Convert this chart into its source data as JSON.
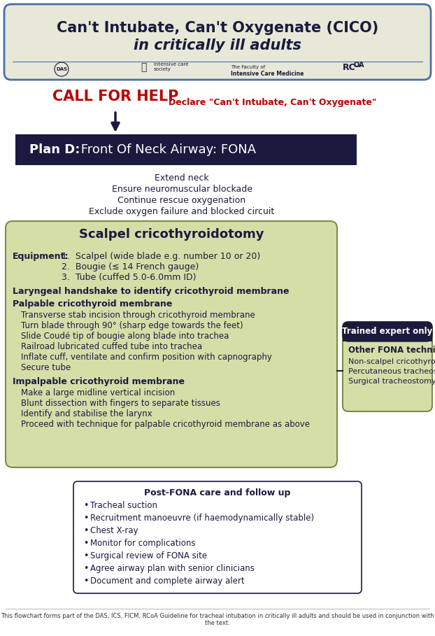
{
  "title_line1": "Can't Intubate, Can't Oxygenate (CICO)",
  "title_line2": "in critically ill adults",
  "bg_color": "#ffffff",
  "title_box_color": "#e8e8d8",
  "title_border_color": "#4a6fa5",
  "call_for_help": "CALL FOR HELP",
  "call_for_help_color": "#bb0000",
  "declare_text": "Declare \"Can't Intubate, Can't Oxygenate\"",
  "declare_color": "#bb0000",
  "plan_d_text": "Plan D: Front Of Neck Airway: FONA",
  "plan_d_bg": "#1a1a3e",
  "plan_d_text_color": "#ffffff",
  "steps": [
    "Extend neck",
    "Ensure neuromuscular blockade",
    "Continue rescue oxygenation",
    "Exclude oxygen failure and blocked circuit"
  ],
  "steps_color": "#1a1a3e",
  "green_box_bg": "#d6dea8",
  "green_box_border": "#7a8c4a",
  "scalpel_title": "Scalpel cricothyroidotomy",
  "scalpel_title_color": "#1a1a3e",
  "equipment_bold": "Equipment:",
  "equipment_items": [
    "1.  Scalpel (wide blade e.g. number 10 or 20)",
    "2.  Bougie (≤ 14 French gauge)",
    "3.  Tube (cuffed 5.0-6.0mm ID)"
  ],
  "laryngeal": "Laryngeal handshake to identify cricothyroid membrane",
  "palpable_heading": "Palpable cricothyroid membrane",
  "palpable_steps": [
    "Transverse stab incision through cricothyroid membrane",
    "Turn blade through 90° (sharp edge towards the feet)",
    "Slide Coudé tip of bougie along blade into trachea",
    "Railroad lubricated cuffed tube into trachea",
    "Inflate cuff, ventilate and confirm position with capnography",
    "Secure tube"
  ],
  "impalpable_heading": "Impalpable cricothyroid membrane",
  "impalpable_steps": [
    "Make a large midline vertical incision",
    "Blunt dissection with fingers to separate tissues",
    "Identify and stabilise the larynx",
    "Proceed with technique for palpable cricothyroid membrane as above"
  ],
  "expert_box_bg": "#1a1a3e",
  "expert_box_text_color": "#ffffff",
  "expert_title": "Trained expert only",
  "other_fona_title": "Other FONA techniques",
  "other_fona_items": [
    "Non-scalpel cricothyroidotomy",
    "Percutaneous tracheostomy",
    "Surgical tracheostomy"
  ],
  "post_fona_title": "Post-FONA care and follow up",
  "post_fona_items": [
    "Tracheal suction",
    "Recruitment manoeuvre (if haemodynamically stable)",
    "Chest X-ray",
    "Monitor for complications",
    "Surgical review of FONA site",
    "Agree airway plan with senior clinicians",
    "Document and complete airway alert"
  ],
  "footer_text": "This flowchart forms part of the DAS, ICS, FICM, RCoA Guideline for tracheal intubation in critically ill adults and should be used in conjunction with the text.",
  "dark_navy": "#1a1a3e"
}
